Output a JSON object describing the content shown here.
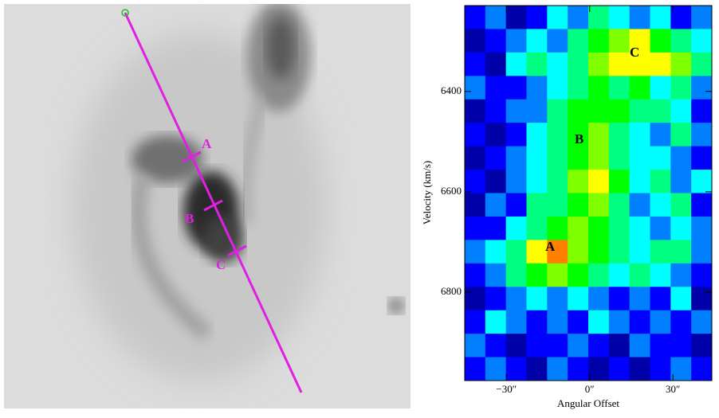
{
  "image_panel": {
    "labels": [
      "A",
      "B",
      "C"
    ]
  },
  "chart_data": {
    "type": "heatmap",
    "xlabel": "Angular Offset",
    "ylabel": "Velocity (km/s)",
    "xlim": [
      -45,
      44
    ],
    "ylim": [
      6229,
      6976
    ],
    "y_inverted": true,
    "xticks": [
      {
        "value": -30,
        "label": "−30″"
      },
      {
        "value": 0,
        "label": "0″"
      },
      {
        "value": 30,
        "label": "30″"
      }
    ],
    "yticks": [
      6400,
      6600,
      6800
    ],
    "zlim": [
      0,
      10
    ],
    "colormap": [
      "#000050",
      "#0000ff",
      "#00ffff",
      "#00ff00",
      "#ffff00",
      "#ff0000"
    ],
    "annotations": [
      "A",
      "B",
      "C"
    ],
    "values": [
      [
        2,
        3,
        1,
        2,
        4,
        3,
        5,
        4,
        3,
        4,
        2,
        3
      ],
      [
        1,
        2,
        3,
        4,
        3,
        5,
        6,
        7,
        8,
        6,
        5,
        4
      ],
      [
        2,
        1,
        4,
        5,
        4,
        5,
        7,
        8,
        8,
        8,
        7,
        5
      ],
      [
        3,
        2,
        2,
        3,
        4,
        5,
        6,
        5,
        6,
        4,
        5,
        3
      ],
      [
        1,
        2,
        3,
        3,
        5,
        6,
        6,
        6,
        5,
        5,
        4,
        2
      ],
      [
        2,
        1,
        2,
        4,
        5,
        6,
        7,
        5,
        4,
        3,
        5,
        3
      ],
      [
        1,
        2,
        3,
        4,
        5,
        6,
        7,
        5,
        4,
        4,
        3,
        2
      ],
      [
        2,
        1,
        3,
        4,
        5,
        7,
        8,
        6,
        4,
        5,
        3,
        4
      ],
      [
        1,
        3,
        2,
        5,
        5,
        6,
        7,
        5,
        3,
        4,
        5,
        2
      ],
      [
        2,
        2,
        4,
        5,
        6,
        7,
        6,
        5,
        4,
        3,
        4,
        3
      ],
      [
        3,
        4,
        5,
        8,
        9,
        7,
        6,
        5,
        4,
        5,
        5,
        3
      ],
      [
        2,
        3,
        5,
        6,
        7,
        6,
        5,
        4,
        5,
        4,
        3,
        2
      ],
      [
        1,
        2,
        3,
        4,
        3,
        4,
        3,
        2,
        3,
        2,
        4,
        1
      ],
      [
        2,
        4,
        3,
        2,
        3,
        2,
        4,
        3,
        2,
        3,
        2,
        3
      ],
      [
        3,
        2,
        1,
        2,
        2,
        3,
        2,
        1,
        3,
        2,
        2,
        1
      ],
      [
        2,
        3,
        2,
        1,
        3,
        2,
        1,
        2,
        1,
        2,
        3,
        2
      ]
    ]
  }
}
